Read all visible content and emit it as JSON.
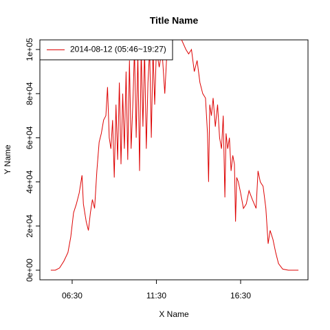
{
  "chart_data": {
    "type": "line",
    "title": "Title Name",
    "x_label": "X Name",
    "y_label": "Y Name",
    "x": [
      314,
      330,
      345,
      360,
      375,
      385,
      395,
      405,
      415,
      425,
      430,
      440,
      448,
      455,
      462,
      470,
      478,
      486,
      494,
      502,
      510,
      516,
      522,
      528,
      534,
      540,
      546,
      552,
      558,
      564,
      570,
      576,
      582,
      588,
      594,
      600,
      606,
      612,
      618,
      624,
      630,
      636,
      642,
      648,
      654,
      660,
      666,
      672,
      678,
      684,
      690,
      700,
      710,
      720,
      730,
      760,
      795,
      805,
      815,
      825,
      835,
      845,
      855,
      865,
      872,
      876,
      880,
      886,
      892,
      900,
      908,
      915,
      922,
      928,
      934,
      938,
      944,
      950,
      956,
      962,
      968,
      972,
      976,
      982,
      990,
      1000,
      1010,
      1020,
      1032,
      1045,
      1052,
      1060,
      1070,
      1080,
      1088,
      1095,
      1105,
      1115,
      1125,
      1140,
      1160,
      1196
    ],
    "series": [
      {
        "name": "2014-08-12 (05:46~19:27)",
        "color": "#dd0000",
        "values": [
          0,
          0,
          1000,
          4000,
          8000,
          15000,
          26000,
          30000,
          35000,
          43000,
          30000,
          22000,
          18000,
          26000,
          32000,
          28000,
          45000,
          58000,
          62000,
          68000,
          70000,
          83000,
          60000,
          55000,
          68000,
          42000,
          75000,
          50000,
          85000,
          48000,
          80000,
          55000,
          90000,
          50000,
          95000,
          55000,
          75000,
          100000,
          60000,
          98000,
          45000,
          100000,
          65000,
          100000,
          55000,
          85000,
          100000,
          60000,
          100000,
          75000,
          100000,
          92000,
          100000,
          80000,
          105000,
          110000,
          100000,
          98000,
          100000,
          90000,
          95000,
          85000,
          80000,
          78000,
          62000,
          40000,
          75000,
          70000,
          78000,
          65000,
          75000,
          60000,
          55000,
          70000,
          33000,
          62000,
          55000,
          60000,
          45000,
          52000,
          48000,
          22000,
          42000,
          40000,
          35000,
          28000,
          30000,
          36000,
          32000,
          28000,
          45000,
          40000,
          38000,
          28000,
          12000,
          18000,
          14000,
          8000,
          3000,
          500,
          0,
          0
        ]
      }
    ],
    "xlim": [
      275,
      1230
    ],
    "ylim": [
      -4360,
      104360
    ],
    "xticks": [
      {
        "value": 390,
        "label": "06:30"
      },
      {
        "value": 690,
        "label": "11:30"
      },
      {
        "value": 990,
        "label": "16:30"
      }
    ],
    "yticks": [
      {
        "value": 0,
        "label": "0e+00"
      },
      {
        "value": 20000,
        "label": "2e+04"
      },
      {
        "value": 40000,
        "label": "4e+04"
      },
      {
        "value": 60000,
        "label": "6e+04"
      },
      {
        "value": 80000,
        "label": "8e+04"
      },
      {
        "value": 100000,
        "label": "1e+05"
      }
    ],
    "legend": "topleft"
  }
}
